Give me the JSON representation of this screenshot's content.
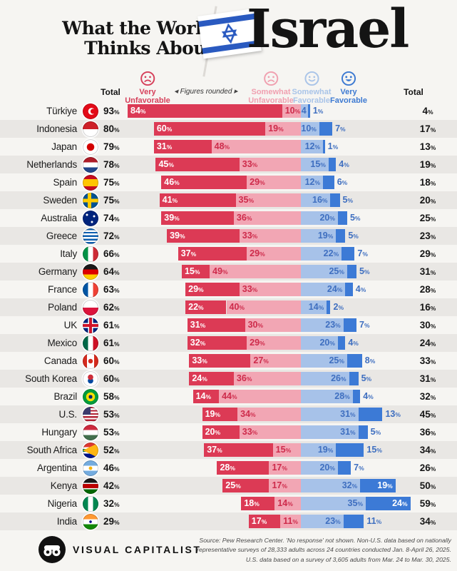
{
  "header": {
    "title_line1": "What the World",
    "title_line2": "Thinks About",
    "country_word": "Israel"
  },
  "legend": {
    "total_left": "Total",
    "total_right": "Total",
    "figures_note": "Figures rounded",
    "very_unfavorable_line1": "Very",
    "very_unfavorable_line2": "Unfavorable",
    "somewhat_unfavorable_line1": "Somewhat",
    "somewhat_unfavorable_line2": "Unfavorable",
    "somewhat_favorable_line1": "Somewhat",
    "somewhat_favorable_line2": "Favorable",
    "very_favorable_line1": "Very",
    "very_favorable_line2": "Favorable"
  },
  "colors": {
    "very_unfavorable": "#dc3a55",
    "somewhat_unfavorable": "#f2a6b4",
    "somewhat_favorable": "#a7c2e9",
    "very_favorable": "#3c7ad6",
    "label_on_pink": "#ce2b4b",
    "label_on_lightblue": "#3f6fc0",
    "row_alt_bg": "#e9e7e4",
    "page_bg": "#f6f5f2"
  },
  "chart_data": {
    "type": "bar",
    "subtype": "diverging-stacked-horizontal",
    "title": "What the World Thinks About Israel",
    "unit": "%",
    "legend_entries": [
      "Very Unfavorable",
      "Somewhat Unfavorable",
      "Somewhat Favorable",
      "Very Favorable"
    ],
    "note": "Figures rounded",
    "left_column": "Total unfavorable",
    "right_column": "Total favorable",
    "rows": [
      {
        "country": "Türkiye",
        "total_unfavorable": 93,
        "very_unfavorable": 84,
        "somewhat_unfavorable": 10,
        "somewhat_favorable": 4,
        "very_favorable": 1,
        "total_favorable": 4,
        "flag": "radial-gradient(circle at 14.5px 11px, #e30a17 0 3.4px, transparent 3.7px), radial-gradient(circle at 12.5px 11px, #ffffff 0 4.6px, transparent 4.9px), #e30a17"
      },
      {
        "country": "Indonesia",
        "total_unfavorable": 80,
        "very_unfavorable": 60,
        "somewhat_unfavorable": 19,
        "somewhat_favorable": 10,
        "very_favorable": 7,
        "total_favorable": 17,
        "flag": "linear-gradient(#ce2028 0 50%, #ffffff 50%)"
      },
      {
        "country": "Japan",
        "total_unfavorable": 79,
        "very_unfavorable": 31,
        "somewhat_unfavorable": 48,
        "somewhat_favorable": 12,
        "very_favorable": 1,
        "total_favorable": 13,
        "flag": "radial-gradient(circle at 50% 50%, #d30000 0 5px, transparent 5.5px), #ffffff"
      },
      {
        "country": "Netherlands",
        "total_unfavorable": 78,
        "very_unfavorable": 45,
        "somewhat_unfavorable": 33,
        "somewhat_favorable": 15,
        "very_favorable": 4,
        "total_favorable": 19,
        "flag": "linear-gradient(#ae1c28 0 34%, #ffffff 34% 66%, #21468b 66%)"
      },
      {
        "country": "Spain",
        "total_unfavorable": 75,
        "very_unfavorable": 46,
        "somewhat_unfavorable": 29,
        "somewhat_favorable": 12,
        "very_favorable": 6,
        "total_favorable": 18,
        "flag": "linear-gradient(#c60b1e 0 27%, #ffc400 27% 73%, #c60b1e 73%)"
      },
      {
        "country": "Sweden",
        "total_unfavorable": 75,
        "very_unfavorable": 41,
        "somewhat_unfavorable": 35,
        "somewhat_favorable": 16,
        "very_favorable": 5,
        "total_favorable": 20,
        "flag": "linear-gradient(to right, transparent 0 7px, #fecc00 7px 12px, transparent 12px), linear-gradient(to bottom, transparent 0 8.5px, #fecc00 8.5px 13.5px, transparent 13.5px), #005293"
      },
      {
        "country": "Australia",
        "total_unfavorable": 74,
        "very_unfavorable": 39,
        "somewhat_unfavorable": 36,
        "somewhat_favorable": 20,
        "very_favorable": 5,
        "total_favorable": 25,
        "flag": "radial-gradient(circle at 6px 6px, #ffffff 0 1.3px, transparent 1.7px), radial-gradient(circle at 16px 8px, #ffffff 0 1.3px, transparent 1.7px), radial-gradient(circle at 13px 16px, #ffffff 0 1.3px, transparent 1.7px), #00247d"
      },
      {
        "country": "Greece",
        "total_unfavorable": 72,
        "very_unfavorable": 39,
        "somewhat_unfavorable": 33,
        "somewhat_favorable": 19,
        "very_favorable": 5,
        "total_favorable": 23,
        "flag": "repeating-linear-gradient(#0d5eaf 0 2.4px, #ffffff 2.4px 4.8px)"
      },
      {
        "country": "Italy",
        "total_unfavorable": 66,
        "very_unfavorable": 37,
        "somewhat_unfavorable": 29,
        "somewhat_favorable": 22,
        "very_favorable": 7,
        "total_favorable": 29,
        "flag": "linear-gradient(to right, #009246 0 34%, #ffffff 34% 66%, #ce2b37 66%)"
      },
      {
        "country": "Germany",
        "total_unfavorable": 64,
        "very_unfavorable": 15,
        "somewhat_unfavorable": 49,
        "somewhat_favorable": 25,
        "very_favorable": 5,
        "total_favorable": 31,
        "flag": "linear-gradient(#1a1a1a 0 34%, #dd0000 34% 66%, #ffce00 66%)"
      },
      {
        "country": "France",
        "total_unfavorable": 63,
        "very_unfavorable": 29,
        "somewhat_unfavorable": 33,
        "somewhat_favorable": 24,
        "very_favorable": 4,
        "total_favorable": 28,
        "flag": "linear-gradient(to right, #0055a4 0 34%, #ffffff 34% 66%, #ef4135 66%)"
      },
      {
        "country": "Poland",
        "total_unfavorable": 62,
        "very_unfavorable": 22,
        "somewhat_unfavorable": 40,
        "somewhat_favorable": 14,
        "very_favorable": 2,
        "total_favorable": 16,
        "flag": "linear-gradient(#ffffff 0 50%, #dc143c 50%)"
      },
      {
        "country": "UK",
        "total_unfavorable": 61,
        "very_unfavorable": 31,
        "somewhat_unfavorable": 30,
        "somewhat_favorable": 23,
        "very_favorable": 7,
        "total_favorable": 30,
        "flag": "linear-gradient(to bottom, transparent 0 9px, #cf142b 9px 13px, transparent 13px), linear-gradient(to right, transparent 0 9px, #cf142b 9px 13px, transparent 13px), linear-gradient(to bottom, transparent 0 7.5px, #ffffff 7.5px 14.5px, transparent 14.5px), linear-gradient(to right, transparent 0 7.5px, #ffffff 7.5px 14.5px, transparent 14.5px), #00247d"
      },
      {
        "country": "Mexico",
        "total_unfavorable": 61,
        "very_unfavorable": 32,
        "somewhat_unfavorable": 29,
        "somewhat_favorable": 20,
        "very_favorable": 4,
        "total_favorable": 24,
        "flag": "linear-gradient(to right, #006847 0 34%, #ffffff 34% 66%, #ce1126 66%)"
      },
      {
        "country": "Canada",
        "total_unfavorable": 60,
        "very_unfavorable": 33,
        "somewhat_unfavorable": 27,
        "somewhat_favorable": 25,
        "very_favorable": 8,
        "total_favorable": 33,
        "flag": "radial-gradient(circle at 50% 50%, #d52b1e 0 3px, transparent 3.4px), linear-gradient(to right, #d52b1e 0 28%, #ffffff 28% 72%, #d52b1e 72%)"
      },
      {
        "country": "South Korea",
        "total_unfavorable": 60,
        "very_unfavorable": 24,
        "somewhat_unfavorable": 36,
        "somewhat_favorable": 26,
        "very_favorable": 5,
        "total_favorable": 31,
        "flag": "radial-gradient(circle at 11px 8.5px, #cd2e3a 0 3.6px, transparent 4px), radial-gradient(circle at 11px 13.5px, #0047a0 0 3.6px, transparent 4px), #ffffff"
      },
      {
        "country": "Brazil",
        "total_unfavorable": 58,
        "very_unfavorable": 14,
        "somewhat_unfavorable": 44,
        "somewhat_favorable": 28,
        "very_favorable": 4,
        "total_favorable": 32,
        "flag": "radial-gradient(circle at 50% 50%, #002776 0 2.6px, #ffdf00 2.6px 6px, transparent 6.4px), #009c3b"
      },
      {
        "country": "U.S.",
        "total_unfavorable": 53,
        "very_unfavorable": 19,
        "somewhat_unfavorable": 34,
        "somewhat_favorable": 31,
        "very_favorable": 13,
        "total_favorable": 45,
        "flag": "linear-gradient(#3c3b6e, #3c3b6e) left top / 11px 11px no-repeat, repeating-linear-gradient(#b22234 0 2.2px, #ffffff 2.2px 4.4px)"
      },
      {
        "country": "Hungary",
        "total_unfavorable": 53,
        "very_unfavorable": 20,
        "somewhat_unfavorable": 33,
        "somewhat_favorable": 31,
        "very_favorable": 5,
        "total_favorable": 36,
        "flag": "linear-gradient(#cd2a3e 0 34%, #ffffff 34% 66%, #436f4d 66%)"
      },
      {
        "country": "South Africa",
        "total_unfavorable": 52,
        "very_unfavorable": 37,
        "somewhat_unfavorable": 15,
        "somewhat_favorable": 19,
        "very_favorable": 15,
        "total_favorable": 34,
        "flag": "conic-gradient(from 65deg at 0% 50%, #ffb612 0 50deg, transparent 50deg), linear-gradient(#de3831 0 30%, #ffffff 30% 40%, #007a4d 40% 60%, #ffffff 60% 70%, #001489 70%)"
      },
      {
        "country": "Argentina",
        "total_unfavorable": 46,
        "very_unfavorable": 28,
        "somewhat_unfavorable": 17,
        "somewhat_favorable": 20,
        "very_favorable": 7,
        "total_favorable": 26,
        "flag": "radial-gradient(circle at 50% 50%, #f6b40e 0 2.2px, transparent 2.6px), linear-gradient(#74acdf 0 34%, #ffffff 34% 66%, #74acdf 66%)"
      },
      {
        "country": "Kenya",
        "total_unfavorable": 42,
        "very_unfavorable": 25,
        "somewhat_unfavorable": 17,
        "somewhat_favorable": 32,
        "very_favorable": 19,
        "total_favorable": 50,
        "flag": "linear-gradient(#1a1a1a 0 30%, #ffffff 30% 37%, #bb0000 37% 63%, #ffffff 63% 70%, #006600 70%)"
      },
      {
        "country": "Nigeria",
        "total_unfavorable": 32,
        "very_unfavorable": 18,
        "somewhat_unfavorable": 14,
        "somewhat_favorable": 35,
        "very_favorable": 24,
        "total_favorable": 59,
        "flag": "linear-gradient(to right, #008751 0 34%, #ffffff 34% 66%, #008751 66%)"
      },
      {
        "country": "India",
        "total_unfavorable": 29,
        "very_unfavorable": 17,
        "somewhat_unfavorable": 11,
        "somewhat_favorable": 23,
        "very_favorable": 11,
        "total_favorable": 34,
        "flag": "radial-gradient(circle at 50% 50%, #000088 0 1.6px, transparent 2px), linear-gradient(#ff9933 0 34%, #ffffff 34% 66%, #138808 66%)"
      }
    ]
  },
  "footer": {
    "brand": "VISUAL CAPITALIST",
    "source_line1": "Source: Pew Research Center. 'No response' not shown. Non-U.S. data based on nationally",
    "source_line2": "representative surveys of 28,333 adults across 24 countries conducted Jan. 8-April 26, 2025.",
    "source_line3": "U.S. data based on a survey of 3,605 adults from Mar. 24 to Mar. 30, 2025."
  }
}
